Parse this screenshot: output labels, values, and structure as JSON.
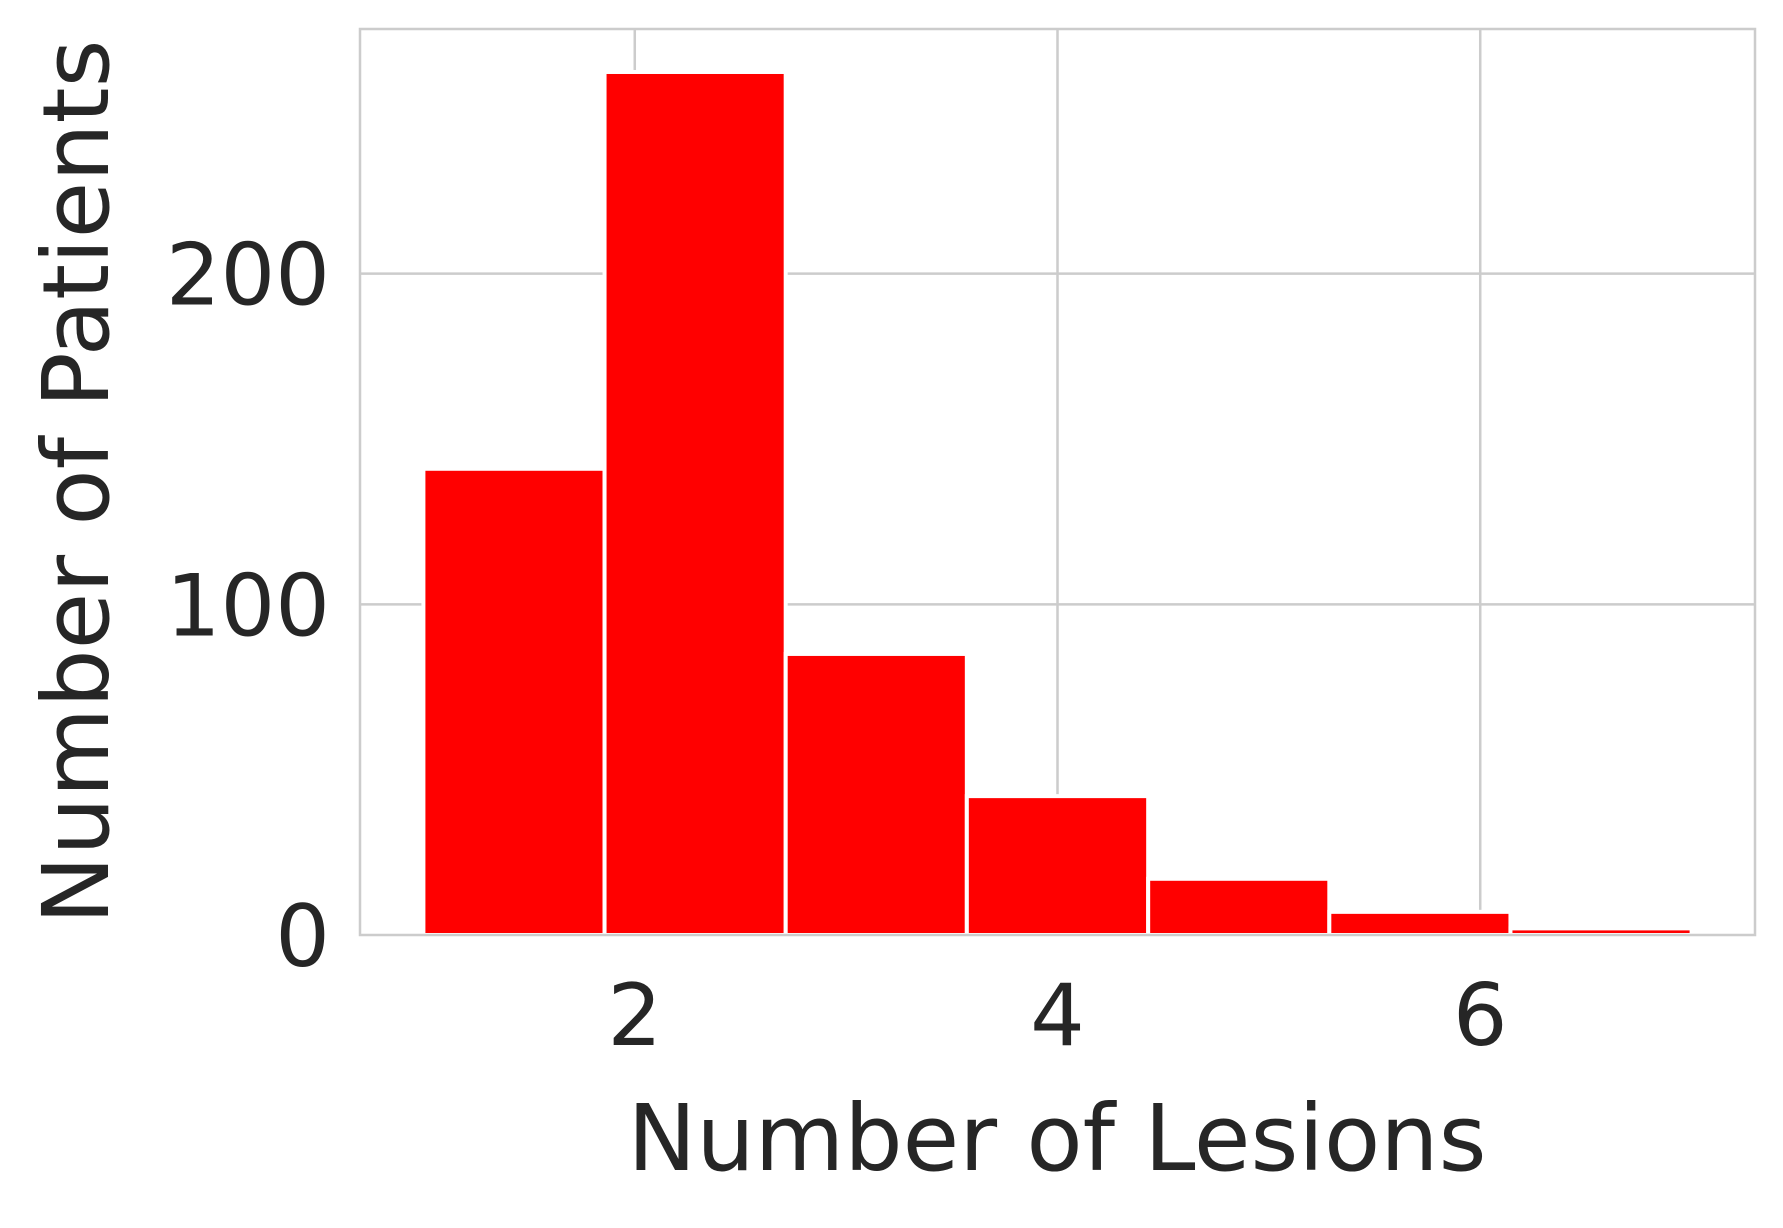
{
  "chart_data": {
    "type": "bar",
    "title": "",
    "xlabel": "Number of Lesions",
    "ylabel": "Number of Patients",
    "bins": [
      {
        "x0": 1.0,
        "x1": 1.857,
        "value": 141
      },
      {
        "x0": 1.857,
        "x1": 2.714,
        "value": 261
      },
      {
        "x0": 2.714,
        "x1": 3.571,
        "value": 85
      },
      {
        "x0": 3.571,
        "x1": 4.429,
        "value": 42
      },
      {
        "x0": 4.429,
        "x1": 5.286,
        "value": 17
      },
      {
        "x0": 5.286,
        "x1": 6.143,
        "value": 7
      },
      {
        "x0": 6.143,
        "x1": 7.0,
        "value": 2
      }
    ],
    "xlim": [
      0.7,
      7.3
    ],
    "ylim": [
      0,
      274
    ],
    "xticks": [
      2,
      4,
      6
    ],
    "xtick_labels": [
      "2",
      "4",
      "6"
    ],
    "yticks": [
      0,
      100,
      200
    ],
    "ytick_labels": [
      "0",
      "100",
      "200"
    ],
    "grid": true,
    "colors": {
      "bar": "#ff0000",
      "bar_edge": "#ffffff",
      "grid": "#cccccc",
      "text": "#262626"
    }
  }
}
